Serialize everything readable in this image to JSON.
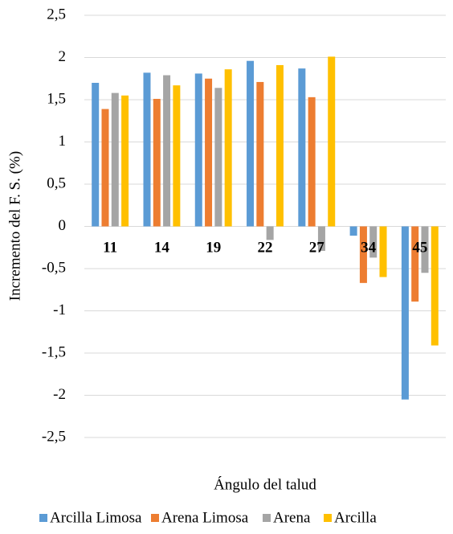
{
  "chart_data": {
    "type": "bar",
    "x_label": "Ángulo del talud",
    "y_label": "Incremento del F. S. (%)",
    "categories": [
      "11",
      "14",
      "19",
      "22",
      "27",
      "34",
      "45"
    ],
    "series": [
      {
        "name": "Arcilla Limosa",
        "color": "#5b9bd5",
        "values": [
          1.7,
          1.82,
          1.81,
          1.96,
          1.87,
          -0.11,
          -2.05
        ]
      },
      {
        "name": "Arena Limosa",
        "color": "#ed7d31",
        "values": [
          1.39,
          1.51,
          1.75,
          1.71,
          1.53,
          -0.67,
          -0.89
        ]
      },
      {
        "name": "Arena",
        "color": "#a5a5a5",
        "values": [
          1.58,
          1.79,
          1.64,
          -0.16,
          -0.29,
          -0.37,
          -0.55
        ]
      },
      {
        "name": "Arcilla",
        "color": "#ffc000",
        "values": [
          1.55,
          1.67,
          1.86,
          1.91,
          2.01,
          -0.6,
          -1.41
        ]
      }
    ],
    "ylim": [
      -2.5,
      2.5
    ],
    "yticks": [
      {
        "value": -2.5,
        "label": "-2,5"
      },
      -2,
      {
        "value": -1.5,
        "label": "-1,5"
      },
      -1,
      {
        "value": -0.5,
        "label": "-0,5"
      },
      0,
      {
        "value": 0.5,
        "label": "0,5"
      },
      1,
      {
        "value": 1.5,
        "label": "1,5"
      },
      2,
      {
        "value": 2.5,
        "label": "2,5"
      }
    ],
    "grid": true,
    "legend": "bottom"
  }
}
